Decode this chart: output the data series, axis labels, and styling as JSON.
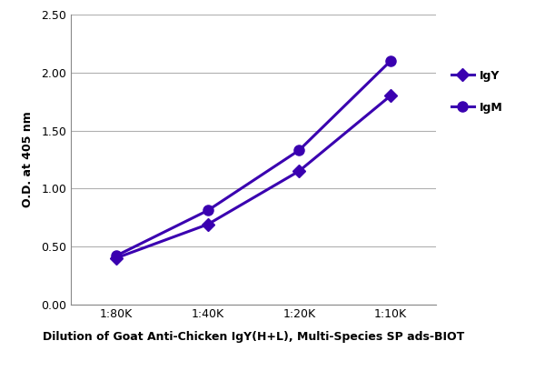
{
  "x_positions": [
    1,
    2,
    3,
    4
  ],
  "x_labels": [
    "1:80K",
    "1:40K",
    "1:20K",
    "1:10K"
  ],
  "IgY_values": [
    0.4,
    0.69,
    1.15,
    1.8
  ],
  "IgM_values": [
    0.42,
    0.81,
    1.33,
    2.1
  ],
  "IgY_color": "#3a00b0",
  "IgM_color": "#3a00b0",
  "ylabel": "O.D. at 405 nm",
  "xlabel": "Dilution of Goat Anti-Chicken IgY(H+L), Multi-Species SP ads-BIOT",
  "ylim": [
    0.0,
    2.5
  ],
  "yticks": [
    0.0,
    0.5,
    1.0,
    1.5,
    2.0,
    2.5
  ],
  "legend_labels": [
    "IgY",
    "IgM"
  ],
  "IgY_marker": "D",
  "IgM_marker": "o",
  "linewidth": 2.2,
  "IgY_markersize": 7,
  "IgM_markersize": 8,
  "grid_color": "#b0b0b0",
  "background_color": "#ffffff",
  "xlabel_fontsize": 9,
  "ylabel_fontsize": 9,
  "tick_fontsize": 9,
  "legend_fontsize": 9
}
